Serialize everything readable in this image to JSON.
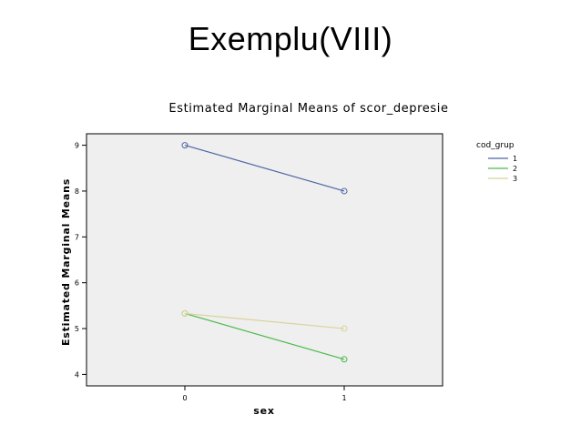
{
  "slide": {
    "title": "Exemplu(VIII)"
  },
  "chart_data": {
    "type": "line",
    "title": "Estimated Marginal Means of scor_depresie",
    "xlabel": "sex",
    "ylabel": "Estimated Marginal Means",
    "categories": [
      "0",
      "1"
    ],
    "ylim": [
      3.75,
      9.25
    ],
    "yticks": [
      4,
      5,
      6,
      7,
      8,
      9
    ],
    "plot_background": "#efefef",
    "grid": false,
    "legend": {
      "title": "cod_grup",
      "placement": "right"
    },
    "series": [
      {
        "name": "1",
        "color": "#4f65a8",
        "values": [
          9.0,
          8.0
        ]
      },
      {
        "name": "2",
        "color": "#4cba4c",
        "values": [
          5.33,
          4.33
        ]
      },
      {
        "name": "3",
        "color": "#d8d49a",
        "values": [
          5.33,
          5.0
        ]
      }
    ]
  }
}
